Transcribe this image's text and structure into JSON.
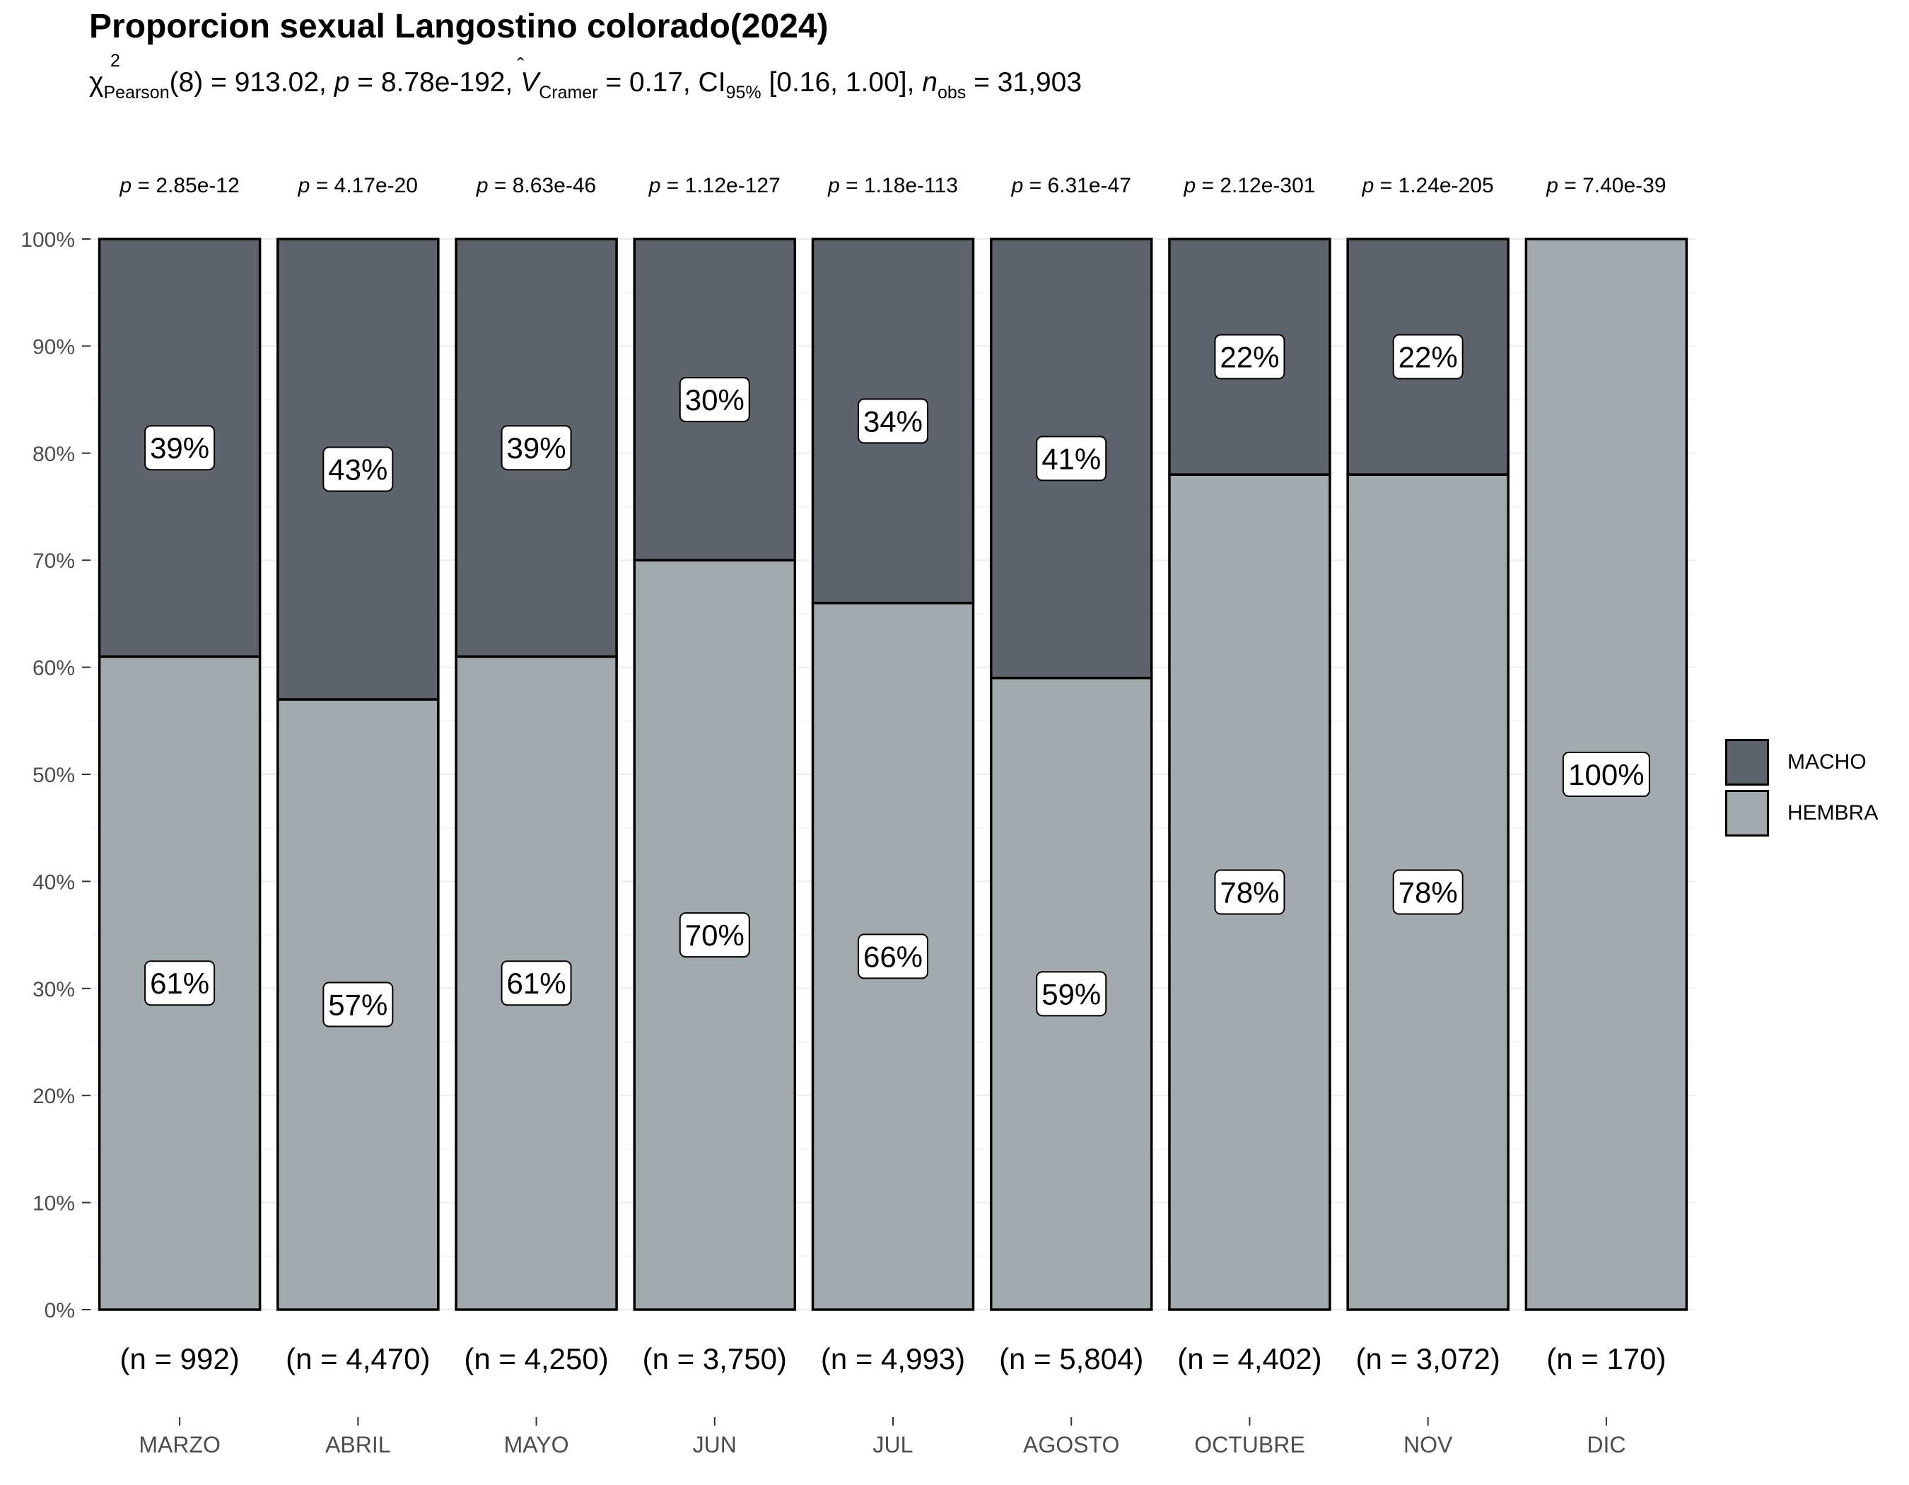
{
  "title": "Proporcion sexual Langostino colorado(2024)",
  "subtitle": {
    "chi": "χ",
    "chi_sup": "2",
    "chi_sub": "Pearson",
    "df_stat": "(8) = 913.02, ",
    "p_label": "p",
    "p_value": " = 8.78e-192, ",
    "v_label": "V",
    "v_sub": "Cramer",
    "v_value": " = 0.17, CI",
    "ci_sub": "95%",
    "ci_value": " [0.16, 1.00], ",
    "n_label": "n",
    "n_sub": "obs",
    "n_value": " = 31,903"
  },
  "legend": {
    "items": [
      {
        "label": "MACHO",
        "color": "#5f636b"
      },
      {
        "label": "HEMBRA",
        "color": "#a3aaad"
      }
    ]
  },
  "chart_data": {
    "type": "bar",
    "stacked": true,
    "percent": true,
    "categories": [
      "MARZO",
      "ABRIL",
      "MAYO",
      "JUN",
      "JUL",
      "AGOSTO",
      "OCTUBRE",
      "NOV",
      "DIC"
    ],
    "series": [
      {
        "name": "HEMBRA",
        "color": "#a3aaad",
        "values": [
          61,
          57,
          61,
          70,
          66,
          59,
          78,
          78,
          100
        ],
        "labels": [
          "61%",
          "57%",
          "61%",
          "70%",
          "66%",
          "59%",
          "78%",
          "78%",
          "100%"
        ]
      },
      {
        "name": "MACHO",
        "color": "#5f636b",
        "values": [
          39,
          43,
          39,
          30,
          34,
          41,
          22,
          22,
          0
        ],
        "labels": [
          "39%",
          "43%",
          "39%",
          "30%",
          "34%",
          "41%",
          "22%",
          "22%",
          ""
        ]
      }
    ],
    "p_values": [
      "2.85e-12",
      "4.17e-20",
      "8.63e-46",
      "1.12e-127",
      "1.18e-113",
      "6.31e-47",
      "2.12e-301",
      "1.24e-205",
      "7.40e-39"
    ],
    "p_prefix": "p = ",
    "n_labels": [
      "(n = 992)",
      "(n = 4,470)",
      "(n = 4,250)",
      "(n = 3,750)",
      "(n = 4,993)",
      "(n = 5,804)",
      "(n = 4,402)",
      "(n = 3,072)",
      "(n = 170)"
    ],
    "y_ticks": [
      "0%",
      "10%",
      "20%",
      "30%",
      "40%",
      "50%",
      "60%",
      "70%",
      "80%",
      "90%",
      "100%"
    ],
    "ylim": [
      0,
      100
    ],
    "grid": true,
    "legend_position": "right"
  }
}
